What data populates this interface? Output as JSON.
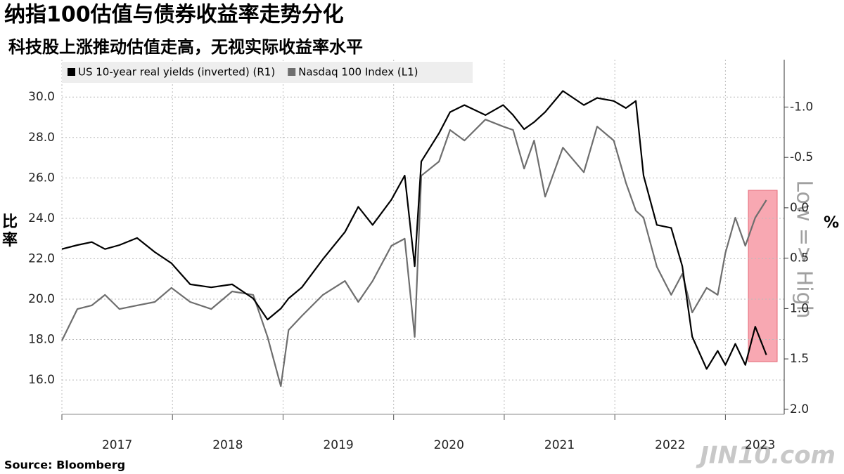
{
  "chart_data": {
    "type": "line",
    "title": "纳指100估值与债券收益率走势分化",
    "subtitle": "科技股上涨推动估值走高，无视实际收益率水平",
    "ylabel": "比率",
    "y2label": "%",
    "annotation": "Low => High",
    "source": "Source: Bloomberg",
    "watermark": "JIN10.com",
    "x": [
      2017.0,
      2017.14,
      2017.27,
      2017.39,
      2017.52,
      2017.68,
      2017.84,
      2017.99,
      2018.16,
      2018.35,
      2018.54,
      2018.73,
      2018.86,
      2018.98,
      2019.05,
      2019.17,
      2019.36,
      2019.56,
      2019.68,
      2019.81,
      2019.98,
      2020.1,
      2020.19,
      2020.25,
      2020.41,
      2020.51,
      2020.64,
      2020.83,
      2020.99,
      2021.08,
      2021.18,
      2021.27,
      2021.37,
      2021.53,
      2021.72,
      2021.84,
      2021.99,
      2022.1,
      2022.19,
      2022.26,
      2022.38,
      2022.51,
      2022.61,
      2022.7,
      2022.83,
      2022.93,
      2023.0,
      2023.09,
      2023.18,
      2023.27,
      2023.37
    ],
    "series": [
      {
        "name": "US 10-year real yields (inverted) (R1)",
        "color": "#000000",
        "axis": "y2",
        "values": [
          0.41,
          0.37,
          0.34,
          0.41,
          0.37,
          0.3,
          0.44,
          0.55,
          0.76,
          0.79,
          0.76,
          0.9,
          1.11,
          1.0,
          0.9,
          0.79,
          0.51,
          0.24,
          -0.01,
          0.17,
          -0.08,
          -0.32,
          0.58,
          -0.46,
          -0.74,
          -0.95,
          -1.02,
          -0.92,
          -1.02,
          -0.92,
          -0.78,
          -0.85,
          -0.95,
          -1.16,
          -1.02,
          -1.09,
          -1.06,
          -0.99,
          -1.06,
          -0.32,
          0.17,
          0.2,
          0.58,
          1.28,
          1.6,
          1.42,
          1.56,
          1.35,
          1.56,
          1.18,
          1.46
        ]
      },
      {
        "name": "Nasdaq 100 Index (L1)",
        "color": "#6e6e6e",
        "values": [
          17.95,
          19.51,
          19.69,
          20.21,
          19.51,
          19.69,
          19.86,
          20.56,
          19.86,
          19.51,
          20.38,
          20.21,
          18.13,
          15.69,
          18.47,
          19.17,
          20.21,
          20.9,
          19.86,
          20.9,
          22.64,
          22.99,
          18.13,
          26.11,
          26.81,
          28.37,
          27.85,
          28.89,
          28.54,
          28.37,
          26.46,
          27.85,
          25.07,
          27.5,
          26.28,
          28.54,
          27.85,
          25.76,
          24.38,
          24.03,
          21.6,
          20.21,
          21.25,
          19.34,
          20.56,
          20.21,
          22.29,
          24.03,
          22.64,
          24.03,
          24.9
        ]
      }
    ],
    "xlim": [
      2017,
      2023.5
    ],
    "xticks": [
      2017,
      2018,
      2019,
      2020,
      2021,
      2022,
      2023
    ],
    "ylim": [
      14.3,
      31.85
    ],
    "yticks": [
      {
        "value": 16,
        "label": "16.0"
      },
      {
        "value": 18,
        "label": "18.0"
      },
      {
        "value": 20,
        "label": "20.0"
      },
      {
        "value": 22,
        "label": "22.0"
      },
      {
        "value": 24,
        "label": "24.0"
      },
      {
        "value": 26,
        "label": "26.0"
      },
      {
        "value": 28,
        "label": "28.0"
      },
      {
        "value": 30,
        "label": "30.0"
      }
    ],
    "y2lim": [
      -1.47,
      2.05
    ],
    "y2_inverted": true,
    "y2ticks": [
      {
        "value": -1,
        "label": "-1.0"
      },
      {
        "value": -0.5,
        "label": "-0.5"
      },
      {
        "value": 0,
        "label": "0.0"
      },
      {
        "value": 0.5,
        "label": "0.5"
      },
      {
        "value": 1,
        "label": "1.0"
      },
      {
        "value": 1.5,
        "label": "1.5"
      },
      {
        "value": 2,
        "label": "2.0"
      }
    ],
    "grid": true,
    "legend": "top-left"
  }
}
